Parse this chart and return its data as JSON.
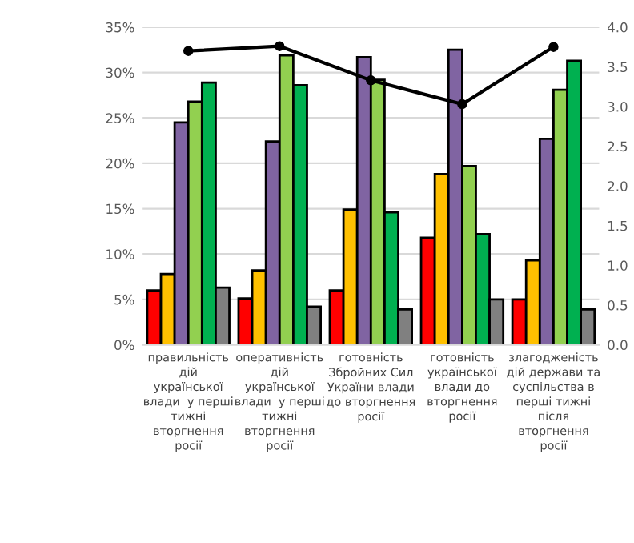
{
  "chart_data": {
    "type": "bar",
    "categories": [
      "правильність дій української влади  у перші тижні вторгнення росії",
      "оперативність дій української влади  у перші тижні вторгнення росії",
      "готовність Збройних Сил України влади до вторгнення росії",
      "готовність української влади до вторгнення росії",
      "злагодженість дій держави та суспільства в перші тижні після вторгнення росії"
    ],
    "series": [
      {
        "color": "#ff0000",
        "values": [
          6.0,
          5.1,
          6.0,
          11.8,
          5.0
        ]
      },
      {
        "color": "#ffc000",
        "values": [
          7.8,
          8.2,
          14.9,
          18.8,
          9.3
        ]
      },
      {
        "color": "#8064a2",
        "values": [
          24.5,
          22.4,
          31.7,
          32.5,
          22.7
        ]
      },
      {
        "color": "#92d050",
        "values": [
          26.8,
          31.9,
          29.2,
          19.7,
          28.1
        ]
      },
      {
        "color": "#00b050",
        "values": [
          28.9,
          28.6,
          14.6,
          12.2,
          31.3
        ]
      },
      {
        "color": "#808080",
        "values": [
          6.3,
          4.2,
          3.9,
          5.0,
          3.9
        ]
      },
      {
        "type": "line",
        "axis": "y2",
        "color": "#000000",
        "marker": "circle",
        "values": [
          3.7,
          3.76,
          3.33,
          3.03,
          3.75
        ]
      }
    ],
    "ylim": [
      0,
      35
    ],
    "yticks": [
      {
        "value": 0,
        "label": "0%"
      },
      {
        "value": 5,
        "label": "5%"
      },
      {
        "value": 10,
        "label": "10%"
      },
      {
        "value": 15,
        "label": "15%"
      },
      {
        "value": 20,
        "label": "20%"
      },
      {
        "value": 25,
        "label": "25%"
      },
      {
        "value": 30,
        "label": "30%"
      },
      {
        "value": 35,
        "label": "35%"
      }
    ],
    "y2lim": [
      0,
      4
    ],
    "y2ticks": [
      {
        "value": 0,
        "label": "0.0"
      },
      {
        "value": 0.5,
        "label": "0.5"
      },
      {
        "value": 1,
        "label": "1.0"
      },
      {
        "value": 1.5,
        "label": "1.5"
      },
      {
        "value": 2,
        "label": "2.0"
      },
      {
        "value": 2.5,
        "label": "2.5"
      },
      {
        "value": 3,
        "label": "3.0"
      },
      {
        "value": 3.5,
        "label": "3.5"
      },
      {
        "value": 4,
        "label": "4.0"
      }
    ],
    "grid": "y"
  }
}
